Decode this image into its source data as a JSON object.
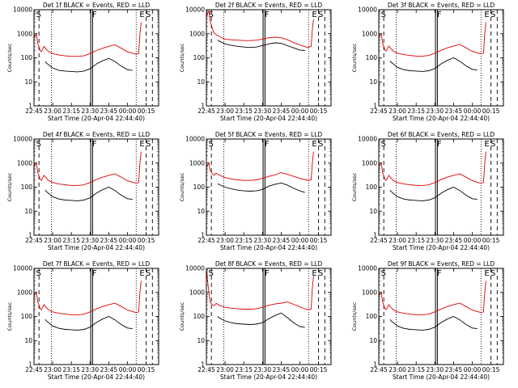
{
  "chart_data": {
    "type": "line",
    "shared": {
      "y_axis_label": "Counts/sec",
      "x_axis_label": "Start Time (20-Apr-04 22:44:40)",
      "y_tick_labels": [
        "1",
        "10",
        "100",
        "1000",
        "10000"
      ],
      "y_tick_values": [
        1,
        10,
        100,
        1000,
        10000
      ],
      "ylim": [
        1,
        10000
      ],
      "y_scale": "log",
      "x_tick_labels": [
        "22:45",
        "23:00",
        "23:15",
        "23:30",
        "23:45",
        "00:00",
        "00:15"
      ],
      "x_tick_values_min": [
        0,
        15,
        30,
        45,
        60,
        75,
        90
      ],
      "xlim_min": [
        0,
        100
      ],
      "markers": [
        {
          "label": "S",
          "x_min": 1
        },
        {
          "label": "F",
          "x_min": 46
        },
        {
          "label": "E",
          "x_min": 84
        },
        {
          "label": "S",
          "x_min": 89
        }
      ],
      "dashed_lines_min": [
        4,
        90,
        95
      ],
      "dotted_lines_min": [
        14,
        82
      ],
      "solid_lines_min": [
        45.5,
        47
      ],
      "series_colors": {
        "events": "#000000",
        "lld": "#e00000"
      }
    },
    "panels": [
      {
        "title": "Det 1f BLACK = Events, RED = LLD",
        "events": {
          "x": [
            9,
            10,
            15,
            20,
            25,
            30,
            35,
            40,
            45,
            50,
            55,
            60,
            65,
            70,
            75,
            79
          ],
          "y": [
            70,
            60,
            38,
            30,
            28,
            27,
            26,
            28,
            35,
            55,
            75,
            95,
            70,
            45,
            32,
            30
          ]
        },
        "lld": {
          "x": [
            0,
            1,
            2,
            3,
            5,
            6,
            8,
            10,
            12,
            15,
            20,
            25,
            30,
            35,
            40,
            45,
            50,
            55,
            60,
            65,
            70,
            75,
            80,
            82,
            84,
            85,
            86
          ],
          "y": [
            700,
            800,
            1000,
            400,
            200,
            180,
            300,
            220,
            180,
            150,
            130,
            120,
            115,
            115,
            120,
            150,
            200,
            250,
            300,
            350,
            250,
            180,
            150,
            140,
            150,
            1000,
            3000
          ]
        }
      },
      {
        "title": "Det 2f BLACK = Events, RED = LLD",
        "events": {
          "x": [
            9,
            10,
            15,
            20,
            25,
            30,
            35,
            40,
            45,
            50,
            55,
            60,
            65,
            70,
            75,
            79
          ],
          "y": [
            550,
            500,
            380,
            330,
            300,
            280,
            270,
            280,
            320,
            380,
            420,
            400,
            320,
            260,
            210,
            200
          ]
        },
        "lld": {
          "x": [
            0,
            1,
            2,
            3,
            5,
            6,
            8,
            10,
            12,
            15,
            20,
            25,
            30,
            35,
            40,
            45,
            50,
            55,
            60,
            65,
            70,
            75,
            80,
            82,
            84,
            85,
            86
          ],
          "y": [
            5000,
            7000,
            9000,
            3500,
            1500,
            1100,
            900,
            800,
            700,
            600,
            560,
            540,
            520,
            520,
            540,
            600,
            680,
            720,
            680,
            560,
            430,
            340,
            280,
            270,
            300,
            1500,
            4000
          ]
        }
      },
      {
        "title": "Det 3f BLACK = Events, RED = LLD",
        "events": {
          "x": [
            9,
            10,
            15,
            20,
            25,
            30,
            35,
            40,
            45,
            50,
            55,
            60,
            65,
            70,
            75,
            79
          ],
          "y": [
            75,
            65,
            40,
            32,
            29,
            28,
            27,
            29,
            36,
            56,
            78,
            100,
            72,
            46,
            33,
            31
          ]
        },
        "lld": {
          "x": [
            0,
            1,
            2,
            3,
            5,
            6,
            8,
            10,
            12,
            15,
            20,
            25,
            30,
            35,
            40,
            45,
            50,
            55,
            60,
            65,
            70,
            75,
            80,
            82,
            84,
            85,
            86
          ],
          "y": [
            750,
            850,
            1000,
            420,
            210,
            190,
            310,
            230,
            185,
            155,
            135,
            125,
            118,
            118,
            124,
            155,
            205,
            260,
            310,
            360,
            260,
            185,
            155,
            145,
            155,
            1000,
            3000
          ]
        }
      },
      {
        "title": "Det 4f BLACK = Events, RED = LLD",
        "events": {
          "x": [
            9,
            10,
            15,
            20,
            25,
            30,
            35,
            40,
            45,
            50,
            55,
            60,
            65,
            70,
            75,
            79
          ],
          "y": [
            75,
            65,
            40,
            32,
            29,
            28,
            27,
            29,
            36,
            56,
            78,
            100,
            72,
            46,
            33,
            31
          ]
        },
        "lld": {
          "x": [
            0,
            1,
            2,
            3,
            5,
            6,
            8,
            10,
            12,
            15,
            20,
            25,
            30,
            35,
            40,
            45,
            50,
            55,
            60,
            65,
            70,
            75,
            80,
            82,
            84,
            85,
            86
          ],
          "y": [
            750,
            850,
            1000,
            420,
            210,
            190,
            310,
            230,
            185,
            155,
            135,
            125,
            118,
            118,
            124,
            155,
            205,
            260,
            310,
            360,
            260,
            185,
            155,
            145,
            155,
            1000,
            3000
          ]
        }
      },
      {
        "title": "Det 5f BLACK = Events, RED = LLD",
        "events": {
          "x": [
            9,
            10,
            15,
            20,
            25,
            30,
            35,
            40,
            45,
            50,
            55,
            60,
            65,
            70,
            75,
            79
          ],
          "y": [
            140,
            130,
            100,
            85,
            75,
            70,
            68,
            70,
            80,
            110,
            130,
            150,
            120,
            90,
            70,
            60
          ]
        },
        "lld": {
          "x": [
            0,
            1,
            2,
            3,
            5,
            6,
            8,
            10,
            12,
            15,
            20,
            25,
            30,
            35,
            40,
            45,
            50,
            55,
            60,
            65,
            70,
            75,
            80,
            82,
            84,
            85,
            86
          ],
          "y": [
            700,
            800,
            1000,
            500,
            350,
            320,
            380,
            330,
            290,
            250,
            220,
            200,
            190,
            190,
            200,
            230,
            280,
            320,
            400,
            340,
            280,
            230,
            200,
            190,
            200,
            1000,
            3000
          ]
        }
      },
      {
        "title": "Det 6f BLACK = Events, RED = LLD",
        "events": {
          "x": [
            9,
            10,
            15,
            20,
            25,
            30,
            35,
            40,
            45,
            50,
            55,
            60,
            65,
            70,
            75,
            79
          ],
          "y": [
            75,
            65,
            40,
            32,
            29,
            28,
            27,
            29,
            36,
            56,
            78,
            100,
            72,
            46,
            33,
            31
          ]
        },
        "lld": {
          "x": [
            0,
            1,
            2,
            3,
            5,
            6,
            8,
            10,
            12,
            15,
            20,
            25,
            30,
            35,
            40,
            45,
            50,
            55,
            60,
            65,
            70,
            75,
            80,
            82,
            84,
            85,
            86
          ],
          "y": [
            750,
            850,
            1000,
            420,
            210,
            190,
            310,
            230,
            185,
            155,
            135,
            125,
            118,
            118,
            124,
            155,
            205,
            260,
            310,
            360,
            260,
            185,
            155,
            145,
            155,
            1000,
            3000
          ]
        }
      },
      {
        "title": "Det 7f BLACK = Events, RED = LLD",
        "events": {
          "x": [
            9,
            10,
            15,
            20,
            25,
            30,
            35,
            40,
            45,
            50,
            55,
            60,
            65,
            70,
            75,
            79
          ],
          "y": [
            75,
            65,
            40,
            32,
            29,
            28,
            27,
            29,
            36,
            56,
            78,
            100,
            72,
            46,
            33,
            31
          ]
        },
        "lld": {
          "x": [
            0,
            1,
            2,
            3,
            5,
            6,
            8,
            10,
            12,
            15,
            20,
            25,
            30,
            35,
            40,
            45,
            50,
            55,
            60,
            65,
            70,
            75,
            80,
            82,
            84,
            85,
            86
          ],
          "y": [
            750,
            850,
            1000,
            420,
            210,
            190,
            310,
            230,
            185,
            155,
            135,
            125,
            118,
            118,
            124,
            155,
            205,
            260,
            310,
            360,
            260,
            185,
            155,
            145,
            155,
            1000,
            3000
          ]
        }
      },
      {
        "title": "Det 8f BLACK = Events, RED = LLD",
        "events": {
          "x": [
            9,
            10,
            15,
            20,
            25,
            30,
            35,
            40,
            45,
            50,
            55,
            60,
            65,
            70,
            75,
            79
          ],
          "y": [
            100,
            90,
            65,
            55,
            50,
            48,
            46,
            48,
            55,
            80,
            110,
            140,
            90,
            55,
            38,
            35
          ]
        },
        "lld": {
          "x": [
            0,
            1,
            2,
            3,
            5,
            6,
            8,
            10,
            12,
            15,
            20,
            25,
            30,
            35,
            40,
            45,
            50,
            55,
            60,
            65,
            70,
            75,
            80,
            82,
            84,
            85,
            86
          ],
          "y": [
            9000,
            3000,
            1000,
            400,
            300,
            280,
            350,
            300,
            270,
            240,
            220,
            210,
            200,
            200,
            210,
            240,
            290,
            330,
            360,
            400,
            320,
            250,
            200,
            190,
            200,
            1500,
            5000
          ]
        }
      },
      {
        "title": "Det 9f BLACK = Events, RED = LLD",
        "events": {
          "x": [
            9,
            10,
            15,
            20,
            25,
            30,
            35,
            40,
            45,
            50,
            55,
            60,
            65,
            70,
            75,
            79
          ],
          "y": [
            75,
            65,
            40,
            32,
            29,
            28,
            27,
            29,
            36,
            56,
            78,
            100,
            72,
            46,
            33,
            31
          ]
        },
        "lld": {
          "x": [
            0,
            1,
            2,
            3,
            5,
            6,
            8,
            10,
            12,
            15,
            20,
            25,
            30,
            35,
            40,
            45,
            50,
            55,
            60,
            65,
            70,
            75,
            80,
            82,
            84,
            85,
            86
          ],
          "y": [
            750,
            850,
            1000,
            420,
            210,
            190,
            310,
            230,
            185,
            155,
            135,
            125,
            118,
            118,
            124,
            155,
            205,
            260,
            310,
            360,
            260,
            185,
            155,
            145,
            155,
            1000,
            3000
          ]
        }
      }
    ]
  }
}
